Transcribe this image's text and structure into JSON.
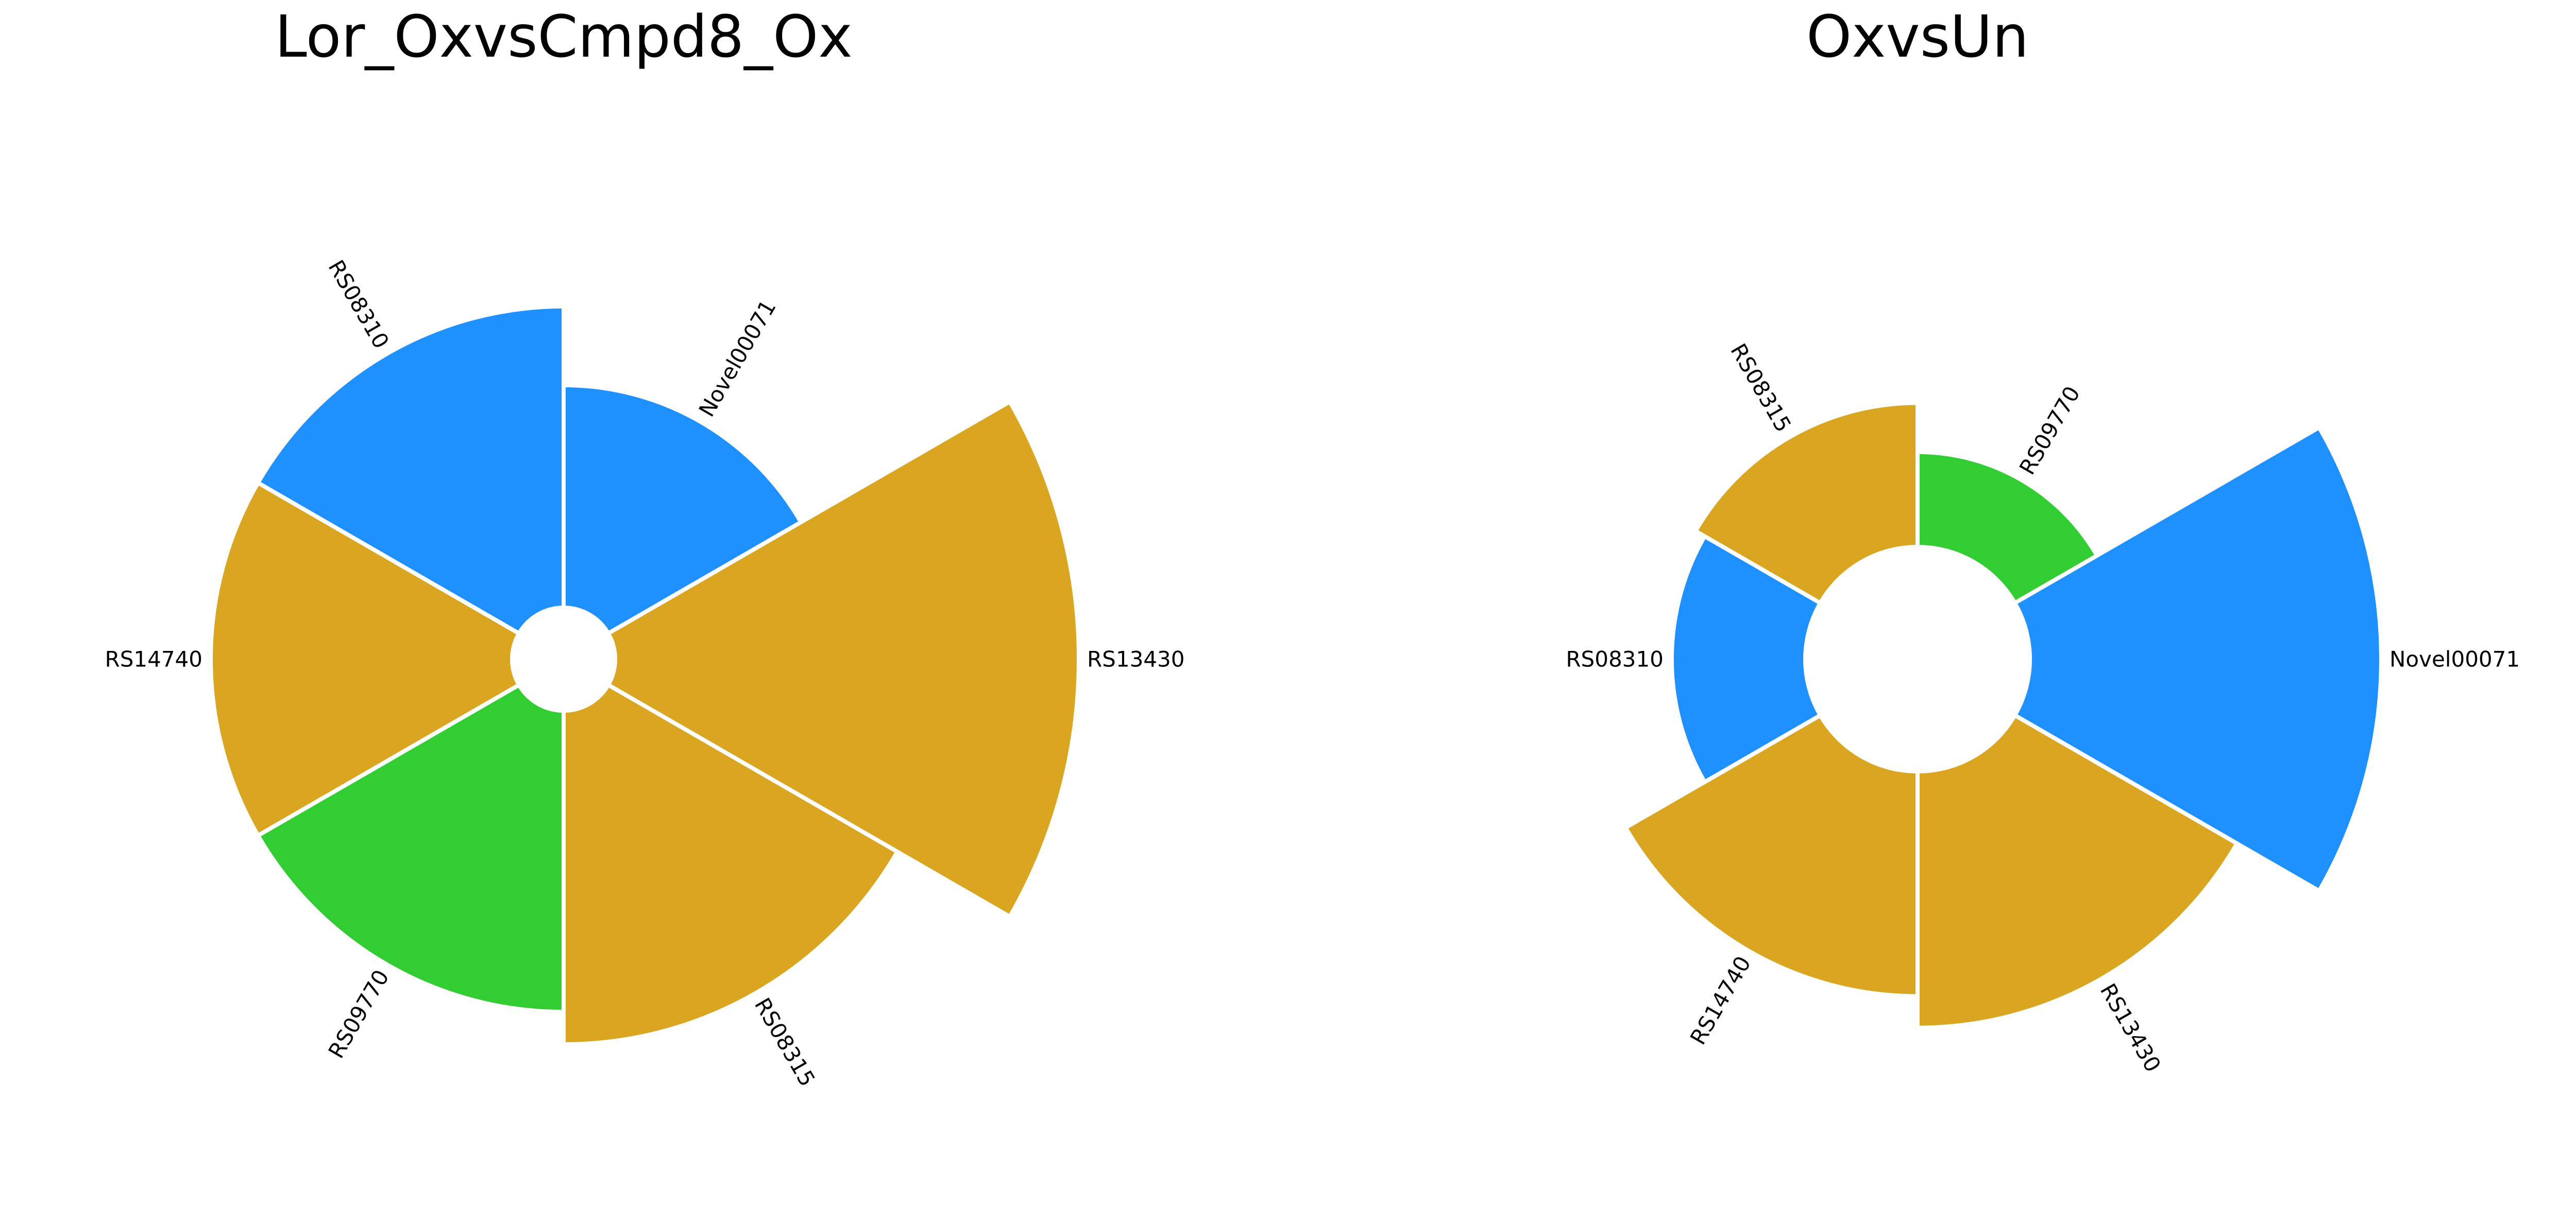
{
  "chart_data": [
    {
      "type": "circular-bar",
      "title": "Lor_OxvsCmpd8_Ox",
      "bars": [
        {
          "label": "Novel00071",
          "value": 0.48,
          "color": "#1E90FF"
        },
        {
          "label": "RS13430",
          "value": 1.0,
          "color": "#DAA520"
        },
        {
          "label": "RS08315",
          "value": 0.72,
          "color": "#DAA520"
        },
        {
          "label": "RS09770",
          "value": 0.65,
          "color": "#32CD32"
        },
        {
          "label": "RS14740",
          "value": 0.65,
          "color": "#DAA520"
        },
        {
          "label": "RS08310",
          "value": 0.65,
          "color": "#1E90FF"
        }
      ]
    },
    {
      "type": "circular-bar",
      "title": "OxvsUn",
      "bars": [
        {
          "label": "RS09770",
          "value": 0.27,
          "color": "#32CD32"
        },
        {
          "label": "Novel00071",
          "value": 1.0,
          "color": "#1E90FF"
        },
        {
          "label": "RS13430",
          "value": 0.73,
          "color": "#DAA520"
        },
        {
          "label": "RS14740",
          "value": 0.64,
          "color": "#DAA520"
        },
        {
          "label": "RS08310",
          "value": 0.38,
          "color": "#1E90FF"
        },
        {
          "label": "RS08315",
          "value": 0.41,
          "color": "#DAA520"
        }
      ]
    }
  ]
}
